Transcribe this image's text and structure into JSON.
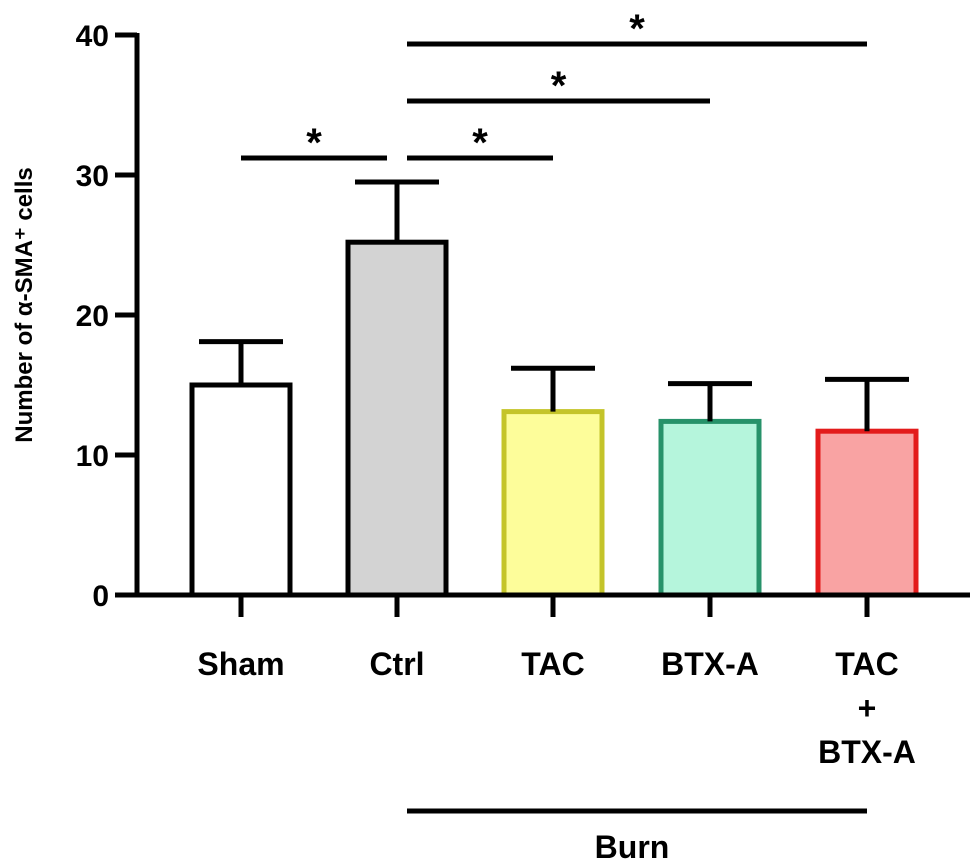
{
  "chart_data": {
    "type": "bar",
    "title": "",
    "xlabel": "",
    "ylabel": "Number of α-SMA⁺ cells",
    "ylim": [
      0,
      40
    ],
    "yticks": [
      0,
      10,
      20,
      30,
      40
    ],
    "grid": false,
    "categories": [
      [
        "Sham"
      ],
      [
        "Ctrl"
      ],
      [
        "TAC"
      ],
      [
        "BTX-A"
      ],
      [
        "TAC",
        "+",
        "BTX-A"
      ]
    ],
    "values": [
      15.0,
      25.2,
      13.1,
      12.4,
      11.7
    ],
    "errors": [
      3.1,
      4.3,
      3.1,
      2.7,
      3.7
    ],
    "fill_colors": [
      "#ffffff",
      "#d3d3d3",
      "#fdfd9a",
      "#b5f5dc",
      "#f9a3a3"
    ],
    "edge_colors": [
      "#000000",
      "#000000",
      "#c4c42a",
      "#27926a",
      "#e31b1b"
    ],
    "group_label": {
      "text": "Burn",
      "from": 1,
      "to": 4
    },
    "significance": [
      {
        "from": 0,
        "to": 1,
        "label": "*"
      },
      {
        "from": 1,
        "to": 2,
        "label": "*"
      },
      {
        "from": 1,
        "to": 3,
        "label": "*"
      },
      {
        "from": 1,
        "to": 4,
        "label": "*"
      }
    ]
  }
}
